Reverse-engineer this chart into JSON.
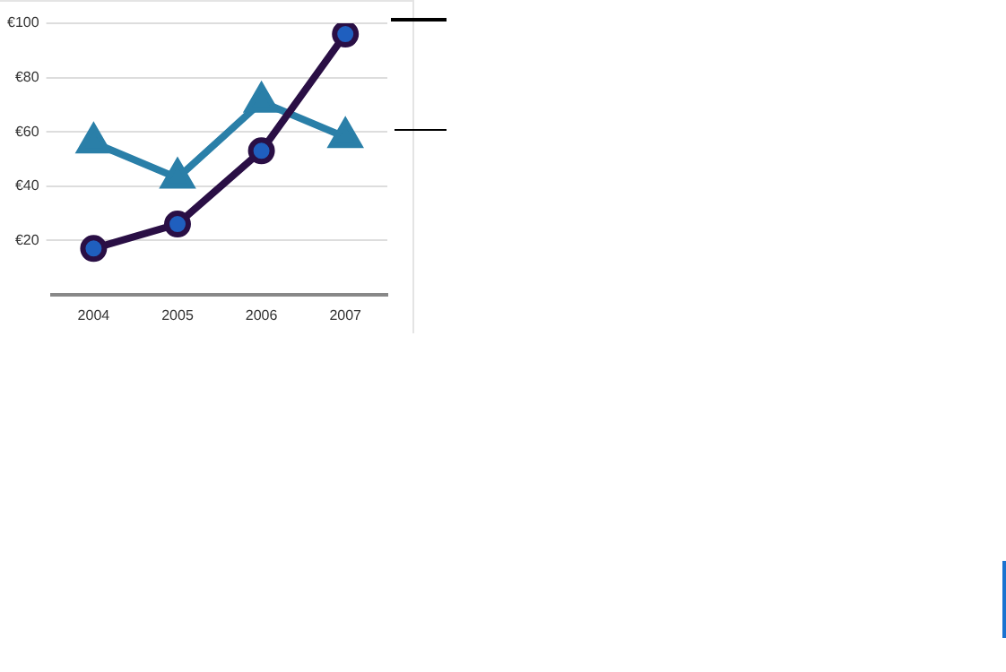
{
  "chart_data": {
    "type": "line",
    "categories": [
      "2004",
      "2005",
      "2006",
      "2007"
    ],
    "series": [
      {
        "color": "#2a0f45",
        "values": [
          17,
          26,
          53,
          96
        ],
        "marker": "circle"
      },
      {
        "color": "#2a7fa8",
        "values": [
          56,
          43,
          71,
          58
        ],
        "marker": "triangle"
      }
    ],
    "ylim": [
      0,
      100
    ],
    "yticks": [
      {
        "value": 20,
        "label": "€20"
      },
      {
        "value": 40,
        "label": "€40"
      },
      {
        "value": 60,
        "label": "€60"
      },
      {
        "value": 80,
        "label": "€80"
      },
      {
        "value": 100,
        "label": "€100"
      }
    ],
    "grid": "y",
    "legend": false,
    "line_style": "solid"
  }
}
